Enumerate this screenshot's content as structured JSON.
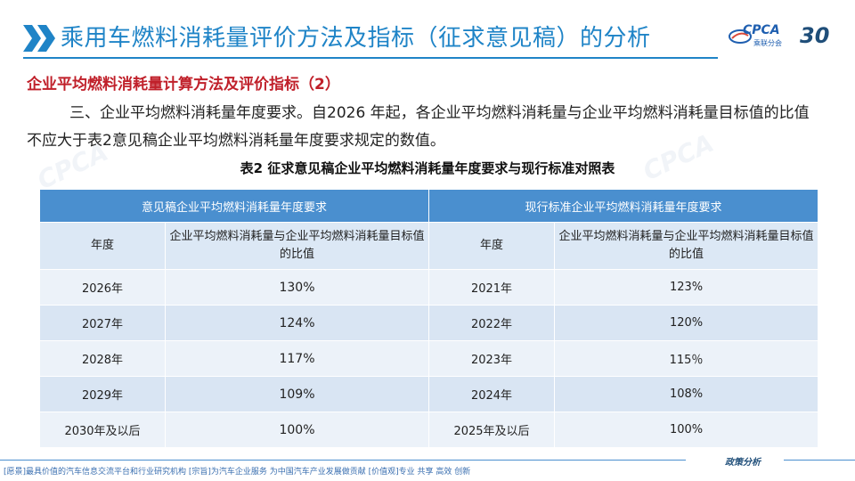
{
  "header": {
    "title": "乘用车燃料消耗量评价方法及指标（征求意见稿）的分析",
    "logo_text": "CPCA",
    "logo_sub": "乘联分会",
    "anniversary": "30",
    "brand_color": "#1f84c7"
  },
  "section": {
    "subtitle": "企业平均燃料消耗量计算方法及评价指标（2）",
    "paragraph": "三、企业平均燃料消耗量年度要求。自2026 年起，各企业平均燃料消耗量与企业平均燃料消耗量目标值的比值不应大于表2意见稿企业平均燃料消耗量年度要求规定的数值。"
  },
  "table": {
    "caption": "表2  征求意见稿企业平均燃料消耗量年度要求与现行标准对照表",
    "group_left": "意见稿企业平均燃料消耗量年度要求",
    "group_right": "现行标准企业平均燃料消耗量年度要求",
    "col_year": "年度",
    "col_ratio_left": "企业平均燃料消耗量与企业平均燃料消耗量目标值的比值",
    "col_ratio_right": "企业平均燃料消耗量与企业平均燃料消耗量目标值的比值",
    "rows": [
      {
        "year_l": "2026年",
        "ratio_l": "130%",
        "year_r": "2021年",
        "ratio_r": "123%"
      },
      {
        "year_l": "2027年",
        "ratio_l": "124%",
        "year_r": "2022年",
        "ratio_r": "120%"
      },
      {
        "year_l": "2028年",
        "ratio_l": "117%",
        "year_r": "2023年",
        "ratio_r": "115％"
      },
      {
        "year_l": "2029年",
        "ratio_l": "109%",
        "year_r": "2024年",
        "ratio_r": "108%"
      },
      {
        "year_l": "2030年及以后",
        "ratio_l": "100%",
        "year_r": "2025年及以后",
        "ratio_r": "100%"
      }
    ]
  },
  "footer": {
    "right_label": "政策分析",
    "left_text": "[愿景]最具价值的汽车信息交流平台和行业研究机构   [宗旨]为汽车企业服务  为中国汽车产业发展做贡献   [价值观]专业  共享  高效  创新"
  }
}
